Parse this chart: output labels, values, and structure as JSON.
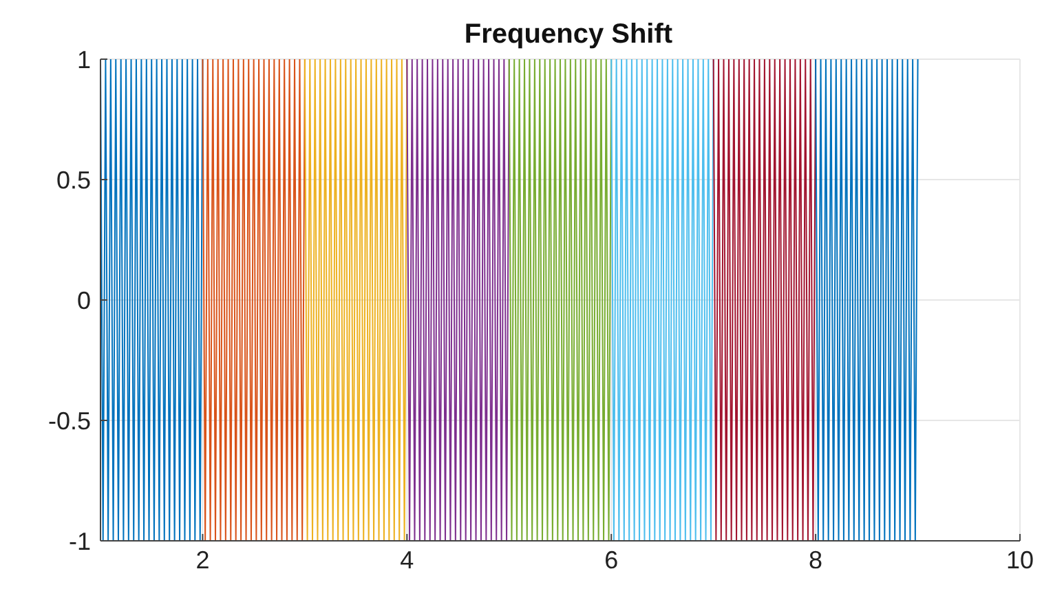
{
  "chart_data": {
    "type": "line",
    "title": "Frequency Shift",
    "xlim": [
      1,
      10
    ],
    "xticks": [
      2,
      4,
      6,
      8,
      10
    ],
    "ylim": [
      -1,
      1
    ],
    "yticks": [
      -1,
      -0.5,
      0,
      0.5,
      1
    ],
    "grid": true,
    "marker": "none",
    "line_style": "solid",
    "series": [
      {
        "color": "#0072bd",
        "x": [
          1,
          1.025,
          1.05,
          1.075,
          1.1,
          1.125,
          1.15,
          1.175,
          1.2,
          1.225,
          1.25,
          1.275,
          1.3,
          1.325,
          1.35,
          1.375,
          1.4,
          1.425,
          1.45,
          1.475,
          1.5,
          1.525,
          1.55,
          1.575,
          1.6,
          1.625,
          1.65,
          1.675,
          1.7,
          1.725,
          1.75,
          1.775,
          1.8,
          1.825,
          1.85,
          1.875,
          1.9,
          1.925,
          1.95,
          1.975,
          2
        ],
        "values": [
          1,
          -1,
          1,
          -1,
          1,
          -1,
          1,
          -1,
          1,
          -1,
          1,
          -1,
          1,
          -1,
          1,
          -1,
          1,
          -1,
          1,
          -1,
          1,
          -1,
          1,
          -1,
          1,
          -1,
          1,
          -1,
          1,
          -1,
          1,
          -1,
          1,
          -1,
          1,
          -1,
          1,
          -1,
          1,
          -1,
          1
        ]
      },
      {
        "color": "#d95319",
        "x": [
          2,
          2.025,
          2.05,
          2.075,
          2.1,
          2.125,
          2.15,
          2.175,
          2.2,
          2.225,
          2.25,
          2.275,
          2.3,
          2.325,
          2.35,
          2.375,
          2.4,
          2.425,
          2.45,
          2.475,
          2.5,
          2.525,
          2.55,
          2.575,
          2.6,
          2.625,
          2.65,
          2.675,
          2.7,
          2.725,
          2.75,
          2.775,
          2.8,
          2.825,
          2.85,
          2.875,
          2.9,
          2.925,
          2.95,
          2.975,
          3
        ],
        "values": [
          1,
          -1,
          1,
          -1,
          1,
          -1,
          1,
          -1,
          1,
          -1,
          1,
          -1,
          1,
          -1,
          1,
          -1,
          1,
          -1,
          1,
          -1,
          1,
          -1,
          1,
          -1,
          1,
          -1,
          1,
          -1,
          1,
          -1,
          1,
          -1,
          1,
          -1,
          1,
          -1,
          1,
          -1,
          1,
          -1,
          1
        ]
      },
      {
        "color": "#edb120",
        "x": [
          3,
          3.025,
          3.05,
          3.075,
          3.1,
          3.125,
          3.15,
          3.175,
          3.2,
          3.225,
          3.25,
          3.275,
          3.3,
          3.325,
          3.35,
          3.375,
          3.4,
          3.425,
          3.45,
          3.475,
          3.5,
          3.525,
          3.55,
          3.575,
          3.6,
          3.625,
          3.65,
          3.675,
          3.7,
          3.725,
          3.75,
          3.775,
          3.8,
          3.825,
          3.85,
          3.875,
          3.9,
          3.925,
          3.95,
          3.975,
          4
        ],
        "values": [
          1,
          -1,
          1,
          -1,
          1,
          -1,
          1,
          -1,
          1,
          -1,
          1,
          -1,
          1,
          -1,
          1,
          -1,
          1,
          -1,
          1,
          -1,
          1,
          -1,
          1,
          -1,
          1,
          -1,
          1,
          -1,
          1,
          -1,
          1,
          -1,
          1,
          -1,
          1,
          -1,
          1,
          -1,
          1,
          -1,
          1
        ]
      },
      {
        "color": "#7e2f8e",
        "x": [
          4,
          4.025,
          4.05,
          4.075,
          4.1,
          4.125,
          4.15,
          4.175,
          4.2,
          4.225,
          4.25,
          4.275,
          4.3,
          4.325,
          4.35,
          4.375,
          4.4,
          4.425,
          4.45,
          4.475,
          4.5,
          4.525,
          4.55,
          4.575,
          4.6,
          4.625,
          4.65,
          4.675,
          4.7,
          4.725,
          4.75,
          4.775,
          4.8,
          4.825,
          4.85,
          4.875,
          4.9,
          4.925,
          4.95,
          4.975,
          5
        ],
        "values": [
          1,
          -1,
          1,
          -1,
          1,
          -1,
          1,
          -1,
          1,
          -1,
          1,
          -1,
          1,
          -1,
          1,
          -1,
          1,
          -1,
          1,
          -1,
          1,
          -1,
          1,
          -1,
          1,
          -1,
          1,
          -1,
          1,
          -1,
          1,
          -1,
          1,
          -1,
          1,
          -1,
          1,
          -1,
          1,
          -1,
          1
        ]
      },
      {
        "color": "#77ac30",
        "x": [
          5,
          5.025,
          5.05,
          5.075,
          5.1,
          5.125,
          5.15,
          5.175,
          5.2,
          5.225,
          5.25,
          5.275,
          5.3,
          5.325,
          5.35,
          5.375,
          5.4,
          5.425,
          5.45,
          5.475,
          5.5,
          5.525,
          5.55,
          5.575,
          5.6,
          5.625,
          5.65,
          5.675,
          5.7,
          5.725,
          5.75,
          5.775,
          5.8,
          5.825,
          5.85,
          5.875,
          5.9,
          5.925,
          5.95,
          5.975,
          6
        ],
        "values": [
          1,
          -1,
          1,
          -1,
          1,
          -1,
          1,
          -1,
          1,
          -1,
          1,
          -1,
          1,
          -1,
          1,
          -1,
          1,
          -1,
          1,
          -1,
          1,
          -1,
          1,
          -1,
          1,
          -1,
          1,
          -1,
          1,
          -1,
          1,
          -1,
          1,
          -1,
          1,
          -1,
          1,
          -1,
          1,
          -1,
          1
        ]
      },
      {
        "color": "#4dbeee",
        "x": [
          6,
          6.025,
          6.05,
          6.075,
          6.1,
          6.125,
          6.15,
          6.175,
          6.2,
          6.225,
          6.25,
          6.275,
          6.3,
          6.325,
          6.35,
          6.375,
          6.4,
          6.425,
          6.45,
          6.475,
          6.5,
          6.525,
          6.55,
          6.575,
          6.6,
          6.625,
          6.65,
          6.675,
          6.7,
          6.725,
          6.75,
          6.775,
          6.8,
          6.825,
          6.85,
          6.875,
          6.9,
          6.925,
          6.95,
          6.975,
          7
        ],
        "values": [
          1,
          -1,
          1,
          -1,
          1,
          -1,
          1,
          -1,
          1,
          -1,
          1,
          -1,
          1,
          -1,
          1,
          -1,
          1,
          -1,
          1,
          -1,
          1,
          -1,
          1,
          -1,
          1,
          -1,
          1,
          -1,
          1,
          -1,
          1,
          -1,
          1,
          -1,
          1,
          -1,
          1,
          -1,
          1,
          -1,
          1
        ]
      },
      {
        "color": "#a2142f",
        "x": [
          7,
          7.025,
          7.05,
          7.075,
          7.1,
          7.125,
          7.15,
          7.175,
          7.2,
          7.225,
          7.25,
          7.275,
          7.3,
          7.325,
          7.35,
          7.375,
          7.4,
          7.425,
          7.45,
          7.475,
          7.5,
          7.525,
          7.55,
          7.575,
          7.6,
          7.625,
          7.65,
          7.675,
          7.7,
          7.725,
          7.75,
          7.775,
          7.8,
          7.825,
          7.85,
          7.875,
          7.9,
          7.925,
          7.95,
          7.975,
          8
        ],
        "values": [
          1,
          -1,
          1,
          -1,
          1,
          -1,
          1,
          -1,
          1,
          -1,
          1,
          -1,
          1,
          -1,
          1,
          -1,
          1,
          -1,
          1,
          -1,
          1,
          -1,
          1,
          -1,
          1,
          -1,
          1,
          -1,
          1,
          -1,
          1,
          -1,
          1,
          -1,
          1,
          -1,
          1,
          -1,
          1,
          -1,
          1
        ]
      },
      {
        "color": "#0072bd",
        "x": [
          8,
          8.025,
          8.05,
          8.075,
          8.1,
          8.125,
          8.15,
          8.175,
          8.2,
          8.225,
          8.25,
          8.275,
          8.3,
          8.325,
          8.35,
          8.375,
          8.4,
          8.425,
          8.45,
          8.475,
          8.5,
          8.525,
          8.55,
          8.575,
          8.6,
          8.625,
          8.65,
          8.675,
          8.7,
          8.725,
          8.75,
          8.775,
          8.8,
          8.825,
          8.85,
          8.875,
          8.9,
          8.925,
          8.95,
          8.975,
          9
        ],
        "values": [
          1,
          -1,
          1,
          -1,
          1,
          -1,
          1,
          -1,
          1,
          -1,
          1,
          -1,
          1,
          -1,
          1,
          -1,
          1,
          -1,
          1,
          -1,
          1,
          -1,
          1,
          -1,
          1,
          -1,
          1,
          -1,
          1,
          -1,
          1,
          -1,
          1,
          -1,
          1,
          -1,
          1,
          -1,
          1,
          -1,
          1
        ]
      }
    ]
  }
}
